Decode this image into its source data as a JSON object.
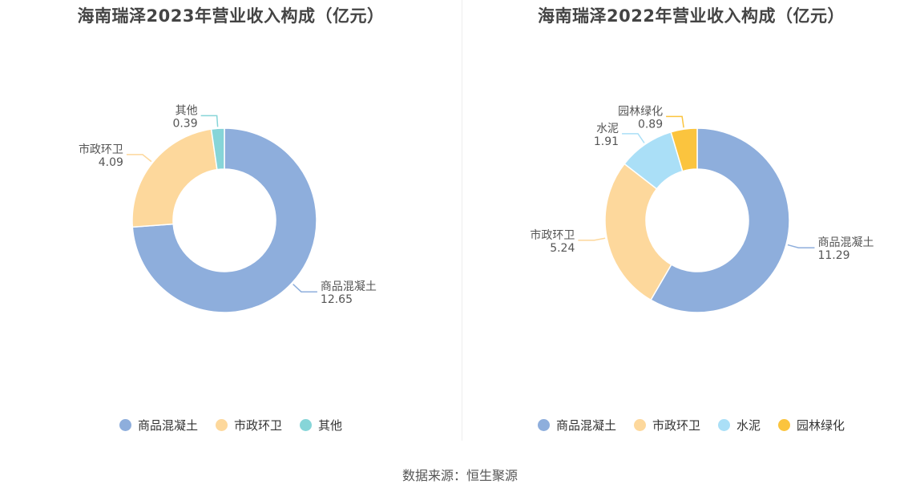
{
  "source": "数据来源：恒生聚源",
  "chart_data": [
    {
      "type": "pie",
      "title": "海南瑞泽2023年营业收入构成（亿元）",
      "slices": [
        {
          "name": "商品混凝土",
          "value": 12.65,
          "value_label": "12.65",
          "color": "#8eaedc"
        },
        {
          "name": "市政环卫",
          "value": 4.09,
          "value_label": "4.09",
          "color": "#fdd89c"
        },
        {
          "name": "其他",
          "value": 0.39,
          "value_label": "0.39",
          "color": "#86d5d8"
        }
      ],
      "legend_position": "bottom"
    },
    {
      "type": "pie",
      "title": "海南瑞泽2022年营业收入构成（亿元）",
      "slices": [
        {
          "name": "商品混凝土",
          "value": 11.29,
          "value_label": "11.29",
          "color": "#8eaedc"
        },
        {
          "name": "市政环卫",
          "value": 5.24,
          "value_label": "5.24",
          "color": "#fdd89c"
        },
        {
          "name": "水泥",
          "value": 1.91,
          "value_label": "1.91",
          "color": "#aadff7"
        },
        {
          "name": "园林绿化",
          "value": 0.89,
          "value_label": "0.89",
          "color": "#fbc43e"
        }
      ],
      "legend_position": "bottom"
    }
  ]
}
